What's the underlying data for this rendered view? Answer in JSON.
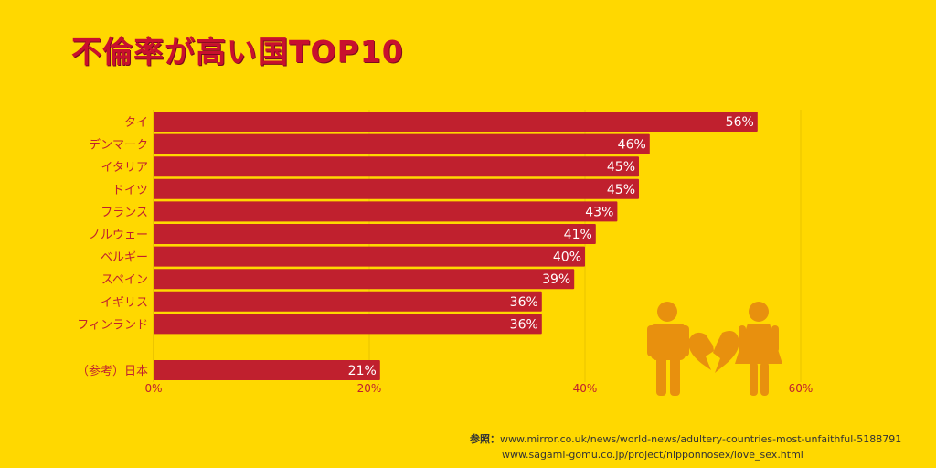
{
  "title": "不倫率が高い国TOP10",
  "colors": {
    "background": "#FFD800",
    "bar": "#C0202E",
    "title": "#C8102E",
    "axis_text": "#C0202E",
    "icon": "#E8900E"
  },
  "chart_data": {
    "type": "bar",
    "orientation": "horizontal",
    "title": "不倫率が高い国TOP10",
    "categories": [
      "タイ",
      "デンマーク",
      "イタリア",
      "ドイツ",
      "フランス",
      "ノルウェー",
      "ベルギー",
      "スペイン",
      "イギリス",
      "フィンランド",
      "（参考）日本"
    ],
    "values": [
      56,
      46,
      45,
      45,
      43,
      41,
      40,
      39,
      36,
      36,
      21
    ],
    "value_labels": [
      "56%",
      "46%",
      "45%",
      "45%",
      "43%",
      "41%",
      "40%",
      "39%",
      "36%",
      "36%",
      "21%"
    ],
    "xlim": [
      0,
      60
    ],
    "xticks": [
      0,
      20,
      40,
      60
    ],
    "xtick_labels": [
      "0%",
      "20%",
      "40%",
      "60%"
    ],
    "grid": true,
    "xlabel": "",
    "ylabel": ""
  },
  "icons": [
    "man-icon",
    "broken-heart-icon",
    "woman-icon"
  ],
  "references": {
    "label": "参照：",
    "lines": [
      "www.mirror.co.uk/news/world-news/adultery-countries-most-unfaithful-5188791",
      "www.sagami-gomu.co.jp/project/nipponnosex/love_sex.html"
    ]
  }
}
